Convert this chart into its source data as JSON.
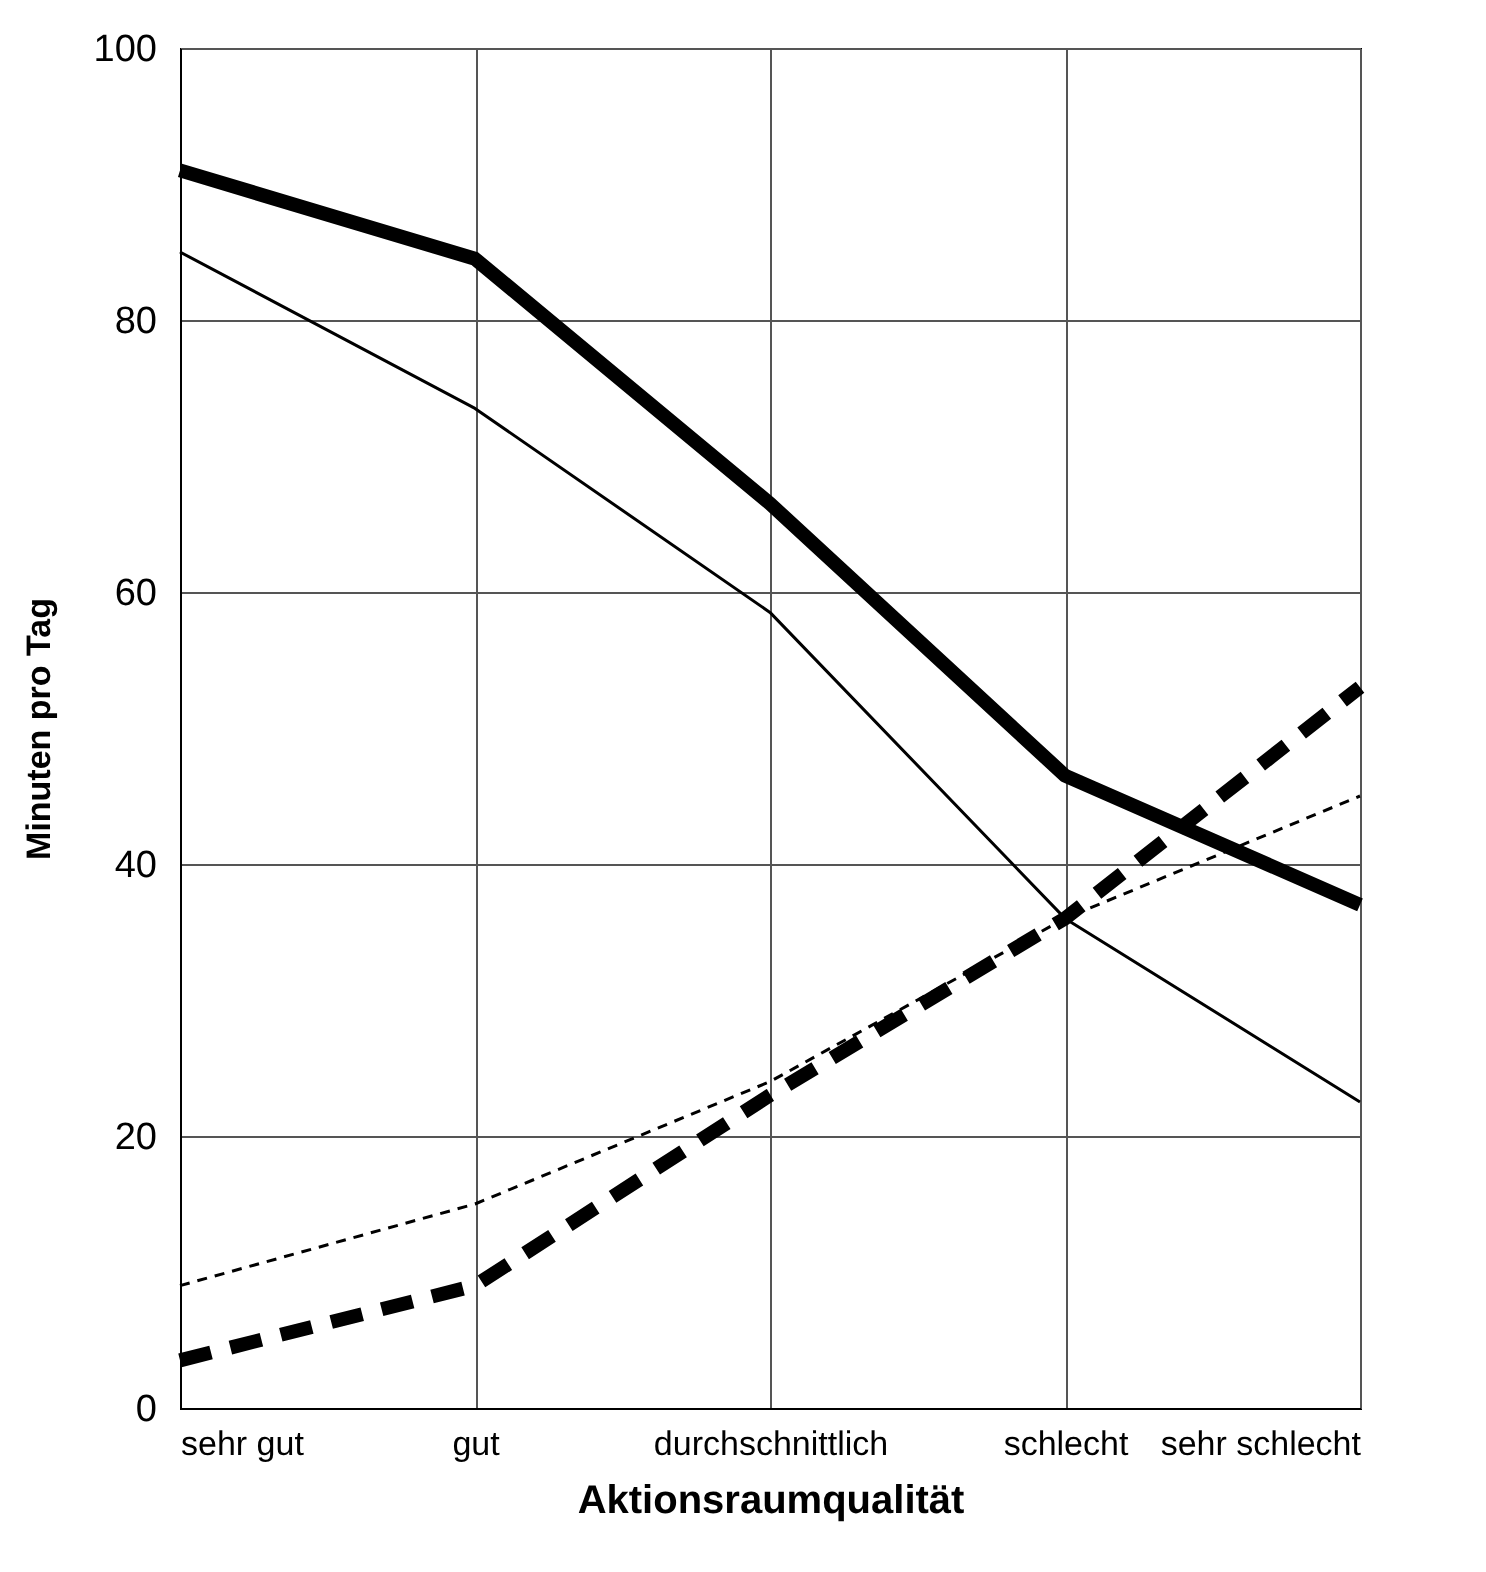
{
  "chart_data": {
    "type": "line",
    "xlabel": "Aktionsraumqualität",
    "ylabel": "Minuten pro Tag",
    "categories": [
      "sehr gut",
      "gut",
      "durchschnittlich",
      "schlecht",
      "sehr schlecht"
    ],
    "series": [
      {
        "color": "#000000",
        "line_style": "solid",
        "values": [
          91,
          84.5,
          66.5,
          46.5,
          37
        ]
      },
      {
        "color": "#000000",
        "line_style": "solid",
        "values": [
          85,
          73.5,
          58.5,
          36,
          22.5
        ]
      },
      {
        "color": "#000000",
        "line_style": "dashed",
        "values": [
          9,
          15,
          24,
          36,
          45
        ]
      },
      {
        "color": "#000000",
        "line_style": "dashed",
        "values": [
          3.5,
          9,
          23,
          36,
          53
        ]
      }
    ],
    "ylim": [
      0,
      100
    ],
    "yticks": [
      0,
      20,
      40,
      60,
      80,
      100
    ],
    "grid": true,
    "marker": "none"
  }
}
